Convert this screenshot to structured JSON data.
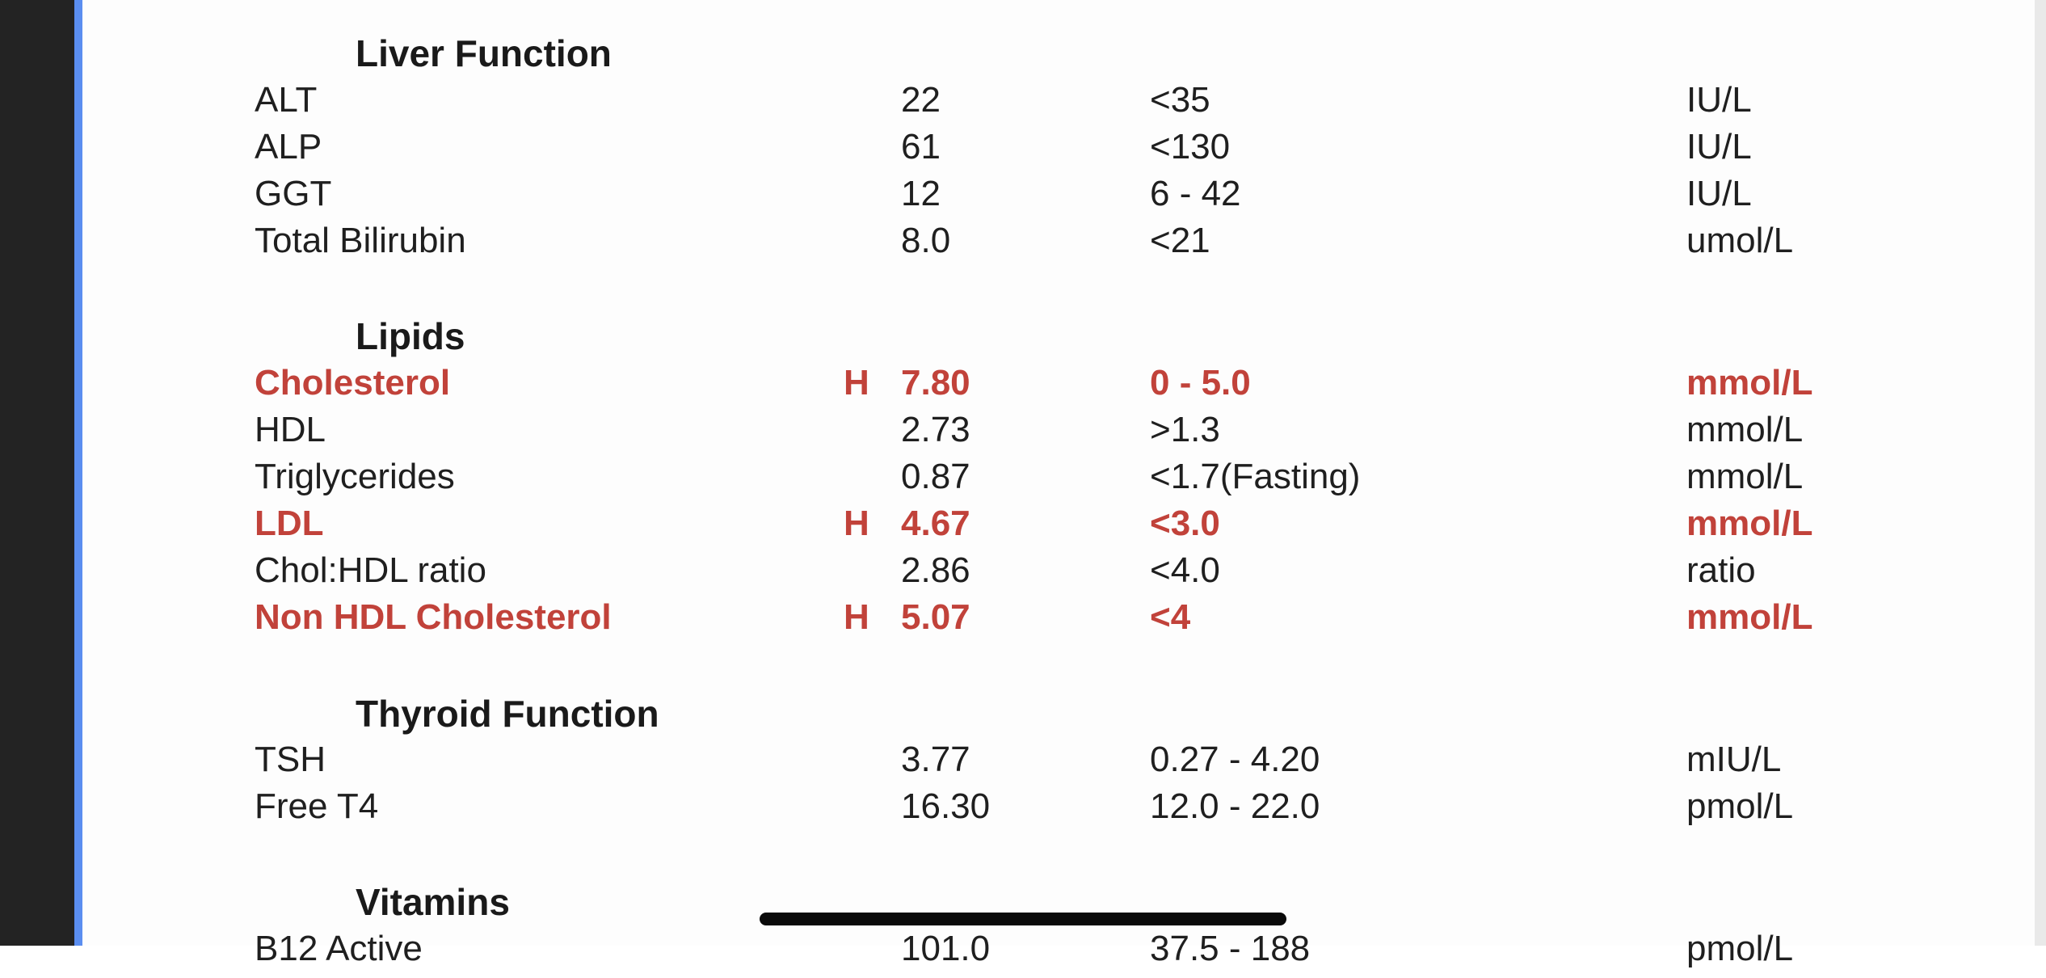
{
  "sections": [
    {
      "title": "Liver Function",
      "rows": [
        {
          "name": "ALT",
          "flag": "",
          "value": "22",
          "range": "<35",
          "unit": "IU/L",
          "high": false
        },
        {
          "name": "ALP",
          "flag": "",
          "value": "61",
          "range": "<130",
          "unit": "IU/L",
          "high": false
        },
        {
          "name": "GGT",
          "flag": "",
          "value": "12",
          "range": "6 - 42",
          "unit": "IU/L",
          "high": false
        },
        {
          "name": "Total Bilirubin",
          "flag": "",
          "value": "8.0",
          "range": "<21",
          "unit": "umol/L",
          "high": false
        }
      ]
    },
    {
      "title": "Lipids",
      "rows": [
        {
          "name": "Cholesterol",
          "flag": "H",
          "value": "7.80",
          "range": "0 - 5.0",
          "unit": "mmol/L",
          "high": true
        },
        {
          "name": "HDL",
          "flag": "",
          "value": "2.73",
          "range": ">1.3",
          "unit": "mmol/L",
          "high": false
        },
        {
          "name": "Triglycerides",
          "flag": "",
          "value": "0.87",
          "range": "<1.7(Fasting)",
          "unit": "mmol/L",
          "high": false
        },
        {
          "name": "LDL",
          "flag": "H",
          "value": "4.67",
          "range": "<3.0",
          "unit": "mmol/L",
          "high": true
        },
        {
          "name": "Chol:HDL ratio",
          "flag": "",
          "value": "2.86",
          "range": "<4.0",
          "unit": "ratio",
          "high": false
        },
        {
          "name": "Non HDL Cholesterol",
          "flag": "H",
          "value": "5.07",
          "range": "<4",
          "unit": "mmol/L",
          "high": true
        }
      ]
    },
    {
      "title": "Thyroid Function",
      "rows": [
        {
          "name": "TSH",
          "flag": "",
          "value": "3.77",
          "range": "0.27 - 4.20",
          "unit": "mIU/L",
          "high": false
        },
        {
          "name": "Free T4",
          "flag": "",
          "value": "16.30",
          "range": "12.0 - 22.0",
          "unit": "pmol/L",
          "high": false
        }
      ]
    },
    {
      "title": "Vitamins",
      "rows": [
        {
          "name": "B12 Active",
          "flag": "",
          "value": "101.0",
          "range": "37.5 - 188",
          "unit": "pmol/L",
          "high": false
        }
      ]
    }
  ],
  "colors": {
    "high_flag": "#c1423a",
    "text": "#1f1f1f",
    "accent_edge": "#5b8ef0"
  }
}
